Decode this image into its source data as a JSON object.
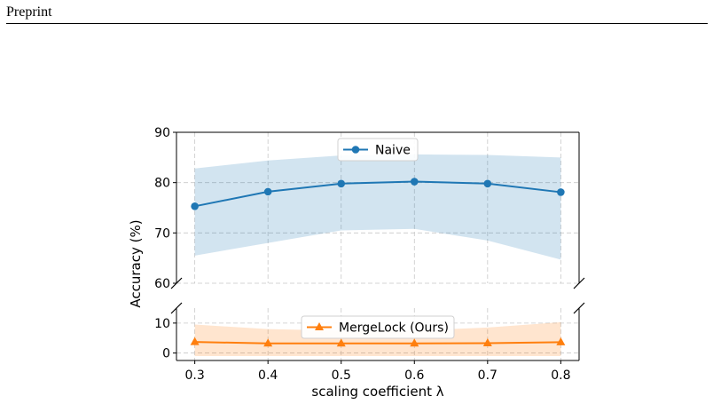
{
  "page": {
    "header": "Preprint"
  },
  "chart_data": {
    "type": "line",
    "xlabel": "scaling coefficient λ",
    "ylabel": "Accuracy (%)",
    "x": [
      0.3,
      0.4,
      0.5,
      0.6,
      0.7,
      0.8
    ],
    "x_tick_labels": [
      "0.3",
      "0.4",
      "0.5",
      "0.6",
      "0.7",
      "0.8"
    ],
    "broken_y_axis": true,
    "grid": true,
    "panels": [
      {
        "ylim": [
          60,
          90
        ],
        "yticks": [
          60,
          70,
          80,
          90
        ],
        "y_tick_labels": [
          "60",
          "70",
          "80",
          "90"
        ],
        "legend_placement": "top-center",
        "series": [
          {
            "name": "Naive",
            "color": "#1f77b4",
            "marker": "circle",
            "values": [
              75.3,
              78.2,
              79.8,
              80.2,
              79.8,
              78.1
            ],
            "band_low": [
              65.5,
              68.0,
              70.5,
              70.8,
              68.5,
              64.7
            ],
            "band_high": [
              82.8,
              84.4,
              85.4,
              85.6,
              85.5,
              85.0
            ]
          }
        ]
      },
      {
        "ylim": [
          -2.5,
          15
        ],
        "yticks": [
          0,
          10
        ],
        "y_tick_labels": [
          "0",
          "10"
        ],
        "legend_placement": "top-center",
        "series": [
          {
            "name": "MergeLock (Ours)",
            "color": "#ff7f0e",
            "marker": "triangle",
            "values": [
              3.7,
              3.2,
              3.2,
              3.2,
              3.3,
              3.6
            ],
            "band_low": [
              -1.0,
              -1.0,
              -1.0,
              -1.0,
              -1.0,
              -1.0
            ],
            "band_high": [
              9.5,
              8.0,
              7.5,
              7.5,
              8.5,
              10.3
            ]
          }
        ]
      }
    ]
  }
}
